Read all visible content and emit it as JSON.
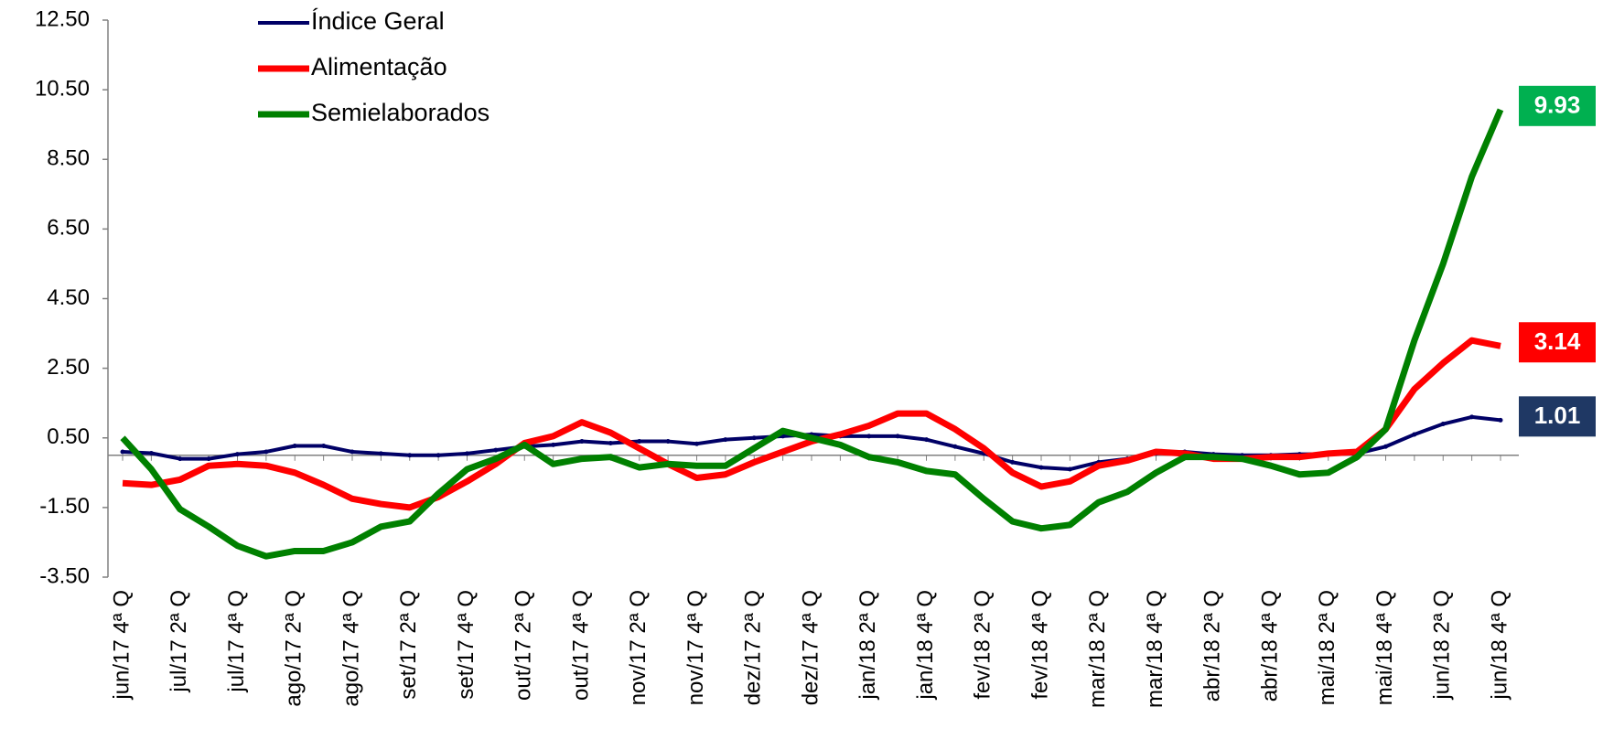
{
  "chart_data": {
    "type": "line",
    "categories": [
      "jun/17 4ª Q",
      null,
      "jul/17 2ª Q",
      null,
      "jul/17 4ª Q",
      null,
      "ago/17 2ª Q",
      null,
      "ago/17 4ª Q",
      null,
      "set/17 2ª Q",
      null,
      "set/17 4ª Q",
      null,
      "out/17 2ª Q",
      null,
      "out/17 4ª Q",
      null,
      "nov/17 2ª Q",
      null,
      "nov/17 4ª Q",
      null,
      "dez/17 2ª Q",
      null,
      "dez/17 4ª Q",
      null,
      "jan/18 2ª Q",
      null,
      "jan/18 4ª Q",
      null,
      "fev/18 2ª Q",
      null,
      "fev/18 4ª Q",
      null,
      "mar/18 2ª Q",
      null,
      "mar/18 4ª Q",
      null,
      "abr/18 2ª Q",
      null,
      "abr/18 4ª Q",
      null,
      "mai/18 2ª Q",
      null,
      "mai/18 4ª Q",
      null,
      "jun/18 2ª Q",
      null,
      "jun/18 4ª Q"
    ],
    "series": [
      {
        "name": "Índice Geral",
        "color": "#000066",
        "values": [
          0.1,
          0.06,
          -0.1,
          -0.1,
          0.03,
          0.1,
          0.27,
          0.27,
          0.1,
          0.05,
          0,
          0,
          0.05,
          0.15,
          0.25,
          0.3,
          0.4,
          0.35,
          0.4,
          0.4,
          0.33,
          0.45,
          0.5,
          0.55,
          0.6,
          0.55,
          0.55,
          0.55,
          0.45,
          0.25,
          0.05,
          -0.2,
          -0.35,
          -0.4,
          -0.2,
          -0.1,
          0.05,
          0.1,
          0.03,
          0,
          0,
          0.03,
          0.03,
          0.05,
          0.25,
          0.6,
          0.9,
          1.1,
          1.01
        ]
      },
      {
        "name": "Alimentação",
        "color": "#ff0000",
        "values": [
          -0.8,
          -0.85,
          -0.7,
          -0.3,
          -0.25,
          -0.3,
          -0.5,
          -0.85,
          -1.25,
          -1.4,
          -1.5,
          -1.2,
          -0.75,
          -0.25,
          0.35,
          0.55,
          0.95,
          0.65,
          0.2,
          -0.25,
          -0.65,
          -0.55,
          -0.2,
          0.1,
          0.4,
          0.6,
          0.85,
          1.2,
          1.2,
          0.75,
          0.2,
          -0.5,
          -0.9,
          -0.75,
          -0.3,
          -0.15,
          0.1,
          0.05,
          -0.1,
          -0.1,
          -0.05,
          -0.05,
          0.05,
          0.1,
          0.75,
          1.9,
          2.65,
          3.3,
          3.14
        ]
      },
      {
        "name": "Semielaborados",
        "color": "#008000",
        "values": [
          0.5,
          -0.4,
          -1.55,
          -2.05,
          -2.6,
          -2.9,
          -2.75,
          -2.75,
          -2.5,
          -2.05,
          -1.9,
          -1.1,
          -0.4,
          -0.1,
          0.3,
          -0.25,
          -0.1,
          -0.05,
          -0.35,
          -0.25,
          -0.3,
          -0.3,
          0.2,
          0.7,
          0.5,
          0.3,
          -0.05,
          -0.2,
          -0.45,
          -0.55,
          -1.25,
          -1.9,
          -2.1,
          -2.0,
          -1.35,
          -1.05,
          -0.5,
          -0.05,
          -0.05,
          -0.1,
          -0.3,
          -0.55,
          -0.5,
          -0.05,
          0.75,
          3.3,
          5.5,
          8.0,
          9.93
        ]
      }
    ],
    "end_label_colors": [
      "#1f3864",
      "#ff0000",
      "#00b050"
    ],
    "ylim": [
      -3.5,
      12.5
    ],
    "yticks": [
      {
        "value": -3.5,
        "label": "-3.50"
      },
      {
        "value": -1.5,
        "label": "-1.50"
      },
      {
        "value": 0.5,
        "label": "0.50"
      },
      {
        "value": 2.5,
        "label": "2.50"
      },
      {
        "value": 4.5,
        "label": "4.50"
      },
      {
        "value": 6.5,
        "label": "6.50"
      },
      {
        "value": 8.5,
        "label": "8.50"
      },
      {
        "value": 10.5,
        "label": "10.50"
      },
      {
        "value": 12.5,
        "label": "12.50"
      }
    ],
    "legend": "top-left"
  }
}
